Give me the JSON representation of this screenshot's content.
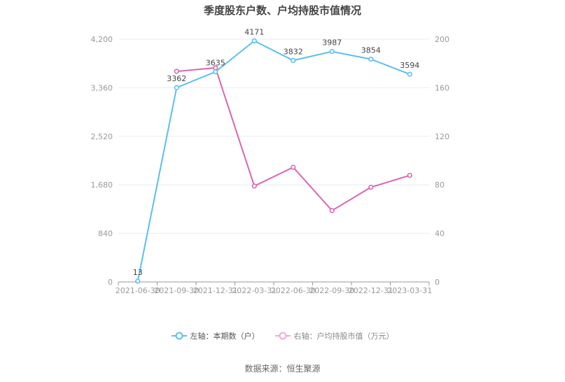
{
  "title": "季度股东户数、户均持股市值情况",
  "legend": {
    "left": "左轴：本期数（户）",
    "right": "右轴：户均持股市值（万元）"
  },
  "source": "数据来源：恒生聚源",
  "colors": {
    "left_series": "#5bc0eb",
    "right_series": "#d966b4",
    "grid": "#e6ecf2",
    "axis": "#999999"
  },
  "chart_data": {
    "type": "line",
    "title": "季度股东户数、户均持股市值情况",
    "categories": [
      "2021-06-30",
      "2021-09-30",
      "2021-12-31",
      "2022-03-31",
      "2022-06-30",
      "2022-09-30",
      "2022-12-31",
      "2023-03-31"
    ],
    "series": [
      {
        "name": "左轴：本期数（户）",
        "axis": "left",
        "values": [
          13,
          3362,
          3635,
          4171,
          3832,
          3987,
          3854,
          3594
        ],
        "labels_shown": true
      },
      {
        "name": "右轴：户均持股市值（万元）",
        "axis": "right",
        "values": [
          null,
          173.5,
          176.4,
          79.0,
          94.5,
          58.8,
          78.0,
          87.8
        ],
        "labels_shown": false
      }
    ],
    "left_axis": {
      "ticks": [
        "0",
        "840",
        "1,680",
        "2,520",
        "3,360",
        "4,200"
      ],
      "range": [
        0,
        4200
      ]
    },
    "right_axis": {
      "ticks": [
        "0",
        "40",
        "80",
        "120",
        "160",
        "200"
      ],
      "range": [
        0,
        200
      ]
    },
    "grid": true,
    "legend_position": "bottom"
  }
}
